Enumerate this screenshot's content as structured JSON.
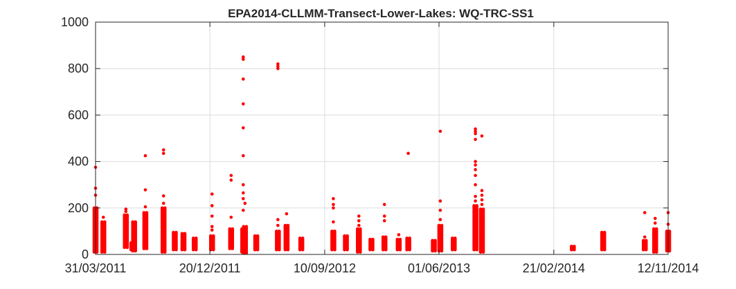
{
  "chart_data": {
    "type": "scatter",
    "title": "EPA2014-CLLMM-Transect-Lower-Lakes: WQ-TRC-SS1",
    "xlabel": "",
    "ylabel": "",
    "x_axis_type": "date",
    "xlim": [
      "2011-03-31",
      "2014-11-12"
    ],
    "ylim": [
      0,
      1000
    ],
    "x_ticks": [
      "2011-03-31",
      "2011-12-20",
      "2012-09-10",
      "2013-06-01",
      "2014-02-21",
      "2014-11-12"
    ],
    "x_tick_labels": [
      "31/03/2011",
      "20/12/2011",
      "10/09/2012",
      "01/06/2013",
      "21/02/2014",
      "12/11/2014"
    ],
    "y_ticks": [
      0,
      200,
      400,
      600,
      800,
      1000
    ],
    "y_tick_labels": [
      "0",
      "200",
      "400",
      "600",
      "800",
      "1000"
    ],
    "grid": true,
    "marker_color": "#ff0000",
    "series": [
      {
        "clusters": [
          {
            "date": "2011-03-31",
            "low": 10,
            "high": 200,
            "extra": [
              255,
              285,
              375
            ]
          },
          {
            "date": "2011-04-18",
            "low": 10,
            "high": 140,
            "extra": [
              160
            ]
          },
          {
            "date": "2011-06-09",
            "low": 30,
            "high": 170,
            "extra": [
              185,
              195
            ]
          },
          {
            "date": "2011-06-24",
            "low": 20,
            "high": 50,
            "extra": []
          },
          {
            "date": "2011-06-28",
            "low": 15,
            "high": 140,
            "extra": []
          },
          {
            "date": "2011-07-24",
            "low": 25,
            "high": 180,
            "extra": [
              205,
              278,
              425
            ]
          },
          {
            "date": "2011-09-04",
            "low": 10,
            "high": 200,
            "extra": [
              220,
              252,
              435,
              450
            ]
          },
          {
            "date": "2011-09-30",
            "low": 20,
            "high": 95,
            "extra": []
          },
          {
            "date": "2011-10-20",
            "low": 20,
            "high": 90,
            "extra": []
          },
          {
            "date": "2011-11-15",
            "low": 20,
            "high": 70,
            "extra": []
          },
          {
            "date": "2011-12-25",
            "low": 20,
            "high": 80,
            "extra": [
              105,
              120,
              165,
              210,
              260
            ]
          },
          {
            "date": "2012-02-07",
            "low": 25,
            "high": 110,
            "extra": [
              160,
              320,
              340
            ]
          },
          {
            "date": "2012-03-06",
            "low": 10,
            "high": 110,
            "extra": [
              190,
              240,
              265,
              300,
              425,
              545,
              648,
              755,
              840,
              850
            ]
          },
          {
            "date": "2012-03-10",
            "low": 5,
            "high": 120,
            "extra": [
              220
            ]
          },
          {
            "date": "2012-04-05",
            "low": 20,
            "high": 80,
            "extra": []
          },
          {
            "date": "2012-05-25",
            "low": 20,
            "high": 100,
            "extra": [
              125,
              150,
              800,
              810,
              820
            ]
          },
          {
            "date": "2012-06-14",
            "low": 20,
            "high": 125,
            "extra": [
              175
            ]
          },
          {
            "date": "2012-07-18",
            "low": 20,
            "high": 70,
            "extra": []
          },
          {
            "date": "2012-09-30",
            "low": 20,
            "high": 100,
            "extra": [
              140,
              200,
              215,
              240
            ]
          },
          {
            "date": "2012-10-29",
            "low": 20,
            "high": 80,
            "extra": []
          },
          {
            "date": "2012-11-28",
            "low": 10,
            "high": 110,
            "extra": [
              125,
              145,
              165
            ]
          },
          {
            "date": "2012-12-27",
            "low": 20,
            "high": 65,
            "extra": []
          },
          {
            "date": "2013-01-26",
            "low": 20,
            "high": 75,
            "extra": [
              145,
              165,
              215
            ]
          },
          {
            "date": "2013-02-28",
            "low": 20,
            "high": 65,
            "extra": [
              85
            ]
          },
          {
            "date": "2013-03-22",
            "low": 20,
            "high": 70,
            "extra": [
              435
            ]
          },
          {
            "date": "2013-05-20",
            "low": 15,
            "high": 60,
            "extra": []
          },
          {
            "date": "2013-06-04",
            "low": 15,
            "high": 125,
            "extra": [
              150,
              190,
              230,
              530
            ]
          },
          {
            "date": "2013-07-05",
            "low": 20,
            "high": 70,
            "extra": []
          },
          {
            "date": "2013-08-24",
            "low": 20,
            "high": 210,
            "extra": [
              230,
              250,
              300,
              340,
              365,
              385,
              400,
              495,
              520,
              530,
              540
            ]
          },
          {
            "date": "2013-09-08",
            "low": 10,
            "high": 195,
            "extra": [
              215,
              235,
              255,
              275,
              510
            ]
          },
          {
            "date": "2014-04-06",
            "low": 20,
            "high": 35,
            "extra": []
          },
          {
            "date": "2014-06-15",
            "low": 20,
            "high": 95,
            "extra": []
          },
          {
            "date": "2014-09-19",
            "low": 20,
            "high": 60,
            "extra": [
              75,
              180
            ]
          },
          {
            "date": "2014-10-13",
            "low": 10,
            "high": 110,
            "extra": [
              135,
              155
            ]
          },
          {
            "date": "2014-11-12",
            "low": 15,
            "high": 100,
            "extra": [
              130,
              180
            ]
          }
        ]
      }
    ]
  }
}
